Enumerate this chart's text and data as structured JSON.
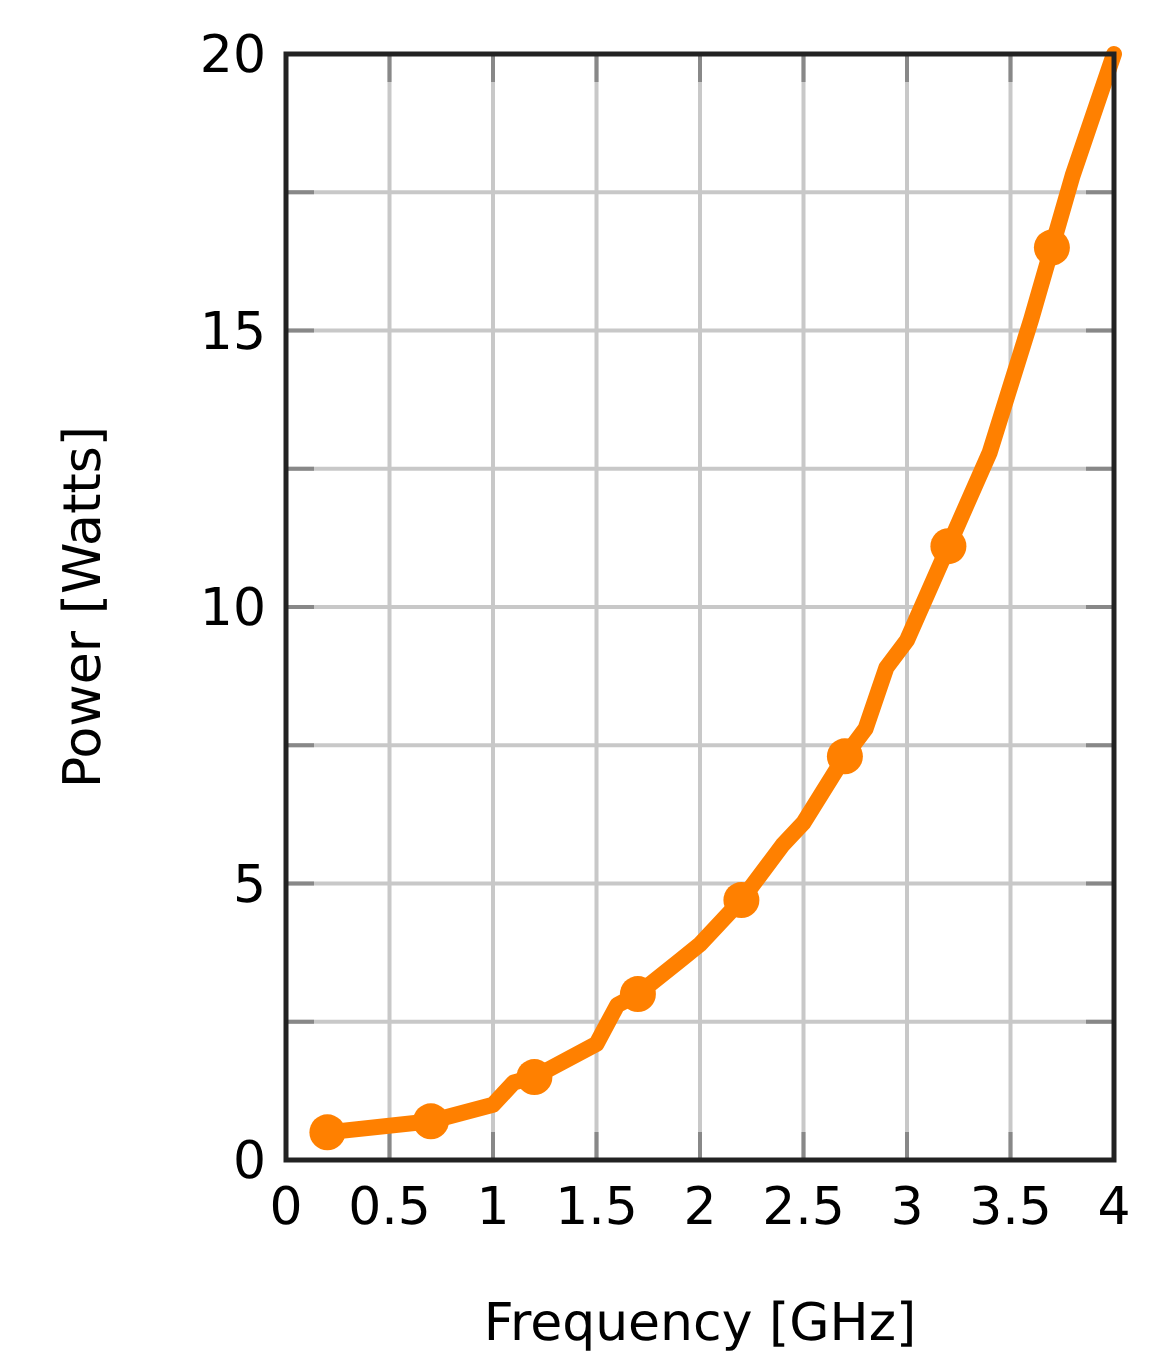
{
  "chart_data": {
    "type": "line",
    "xlabel": "Frequency [GHz]",
    "ylabel": "Power [Watts]",
    "xlim": [
      0,
      4
    ],
    "xticks": [
      0,
      0.5,
      1,
      1.5,
      2,
      2.5,
      3,
      3.5,
      4
    ],
    "ylim": [
      0,
      20
    ],
    "yticks": [
      0,
      {
        "value": 2.5,
        "label": null
      },
      5,
      {
        "value": 7.5,
        "label": null
      },
      10,
      {
        "value": 12.5,
        "label": null
      },
      15,
      {
        "value": 17.5,
        "label": null
      },
      20
    ],
    "grid": true,
    "series": [
      {
        "color": "#ff8000",
        "marker": "none",
        "line_style": "solid",
        "x": [
          0.2,
          0.7,
          1.0,
          1.1,
          1.2,
          1.5,
          1.6,
          1.7,
          1.9,
          2.0,
          2.2,
          2.4,
          2.5,
          2.7,
          2.8,
          2.9,
          3.0,
          3.2,
          3.4,
          3.6,
          3.7,
          3.8,
          4.0
        ],
        "values": [
          0.5,
          0.7,
          1.0,
          1.4,
          1.5,
          2.1,
          2.8,
          3.0,
          3.6,
          3.9,
          4.7,
          5.7,
          6.1,
          7.3,
          7.8,
          8.9,
          9.4,
          11.1,
          12.8,
          15.2,
          16.5,
          17.8,
          20
        ]
      },
      {
        "type": "scatter",
        "color": "#ff8000",
        "marker": "circle",
        "x": [
          0.2,
          0.7,
          1.2,
          1.7,
          2.2,
          2.7,
          3.2,
          3.7
        ],
        "values": [
          0.5,
          0.7,
          1.5,
          3.0,
          4.7,
          7.3,
          11.1,
          16.5
        ]
      }
    ]
  }
}
